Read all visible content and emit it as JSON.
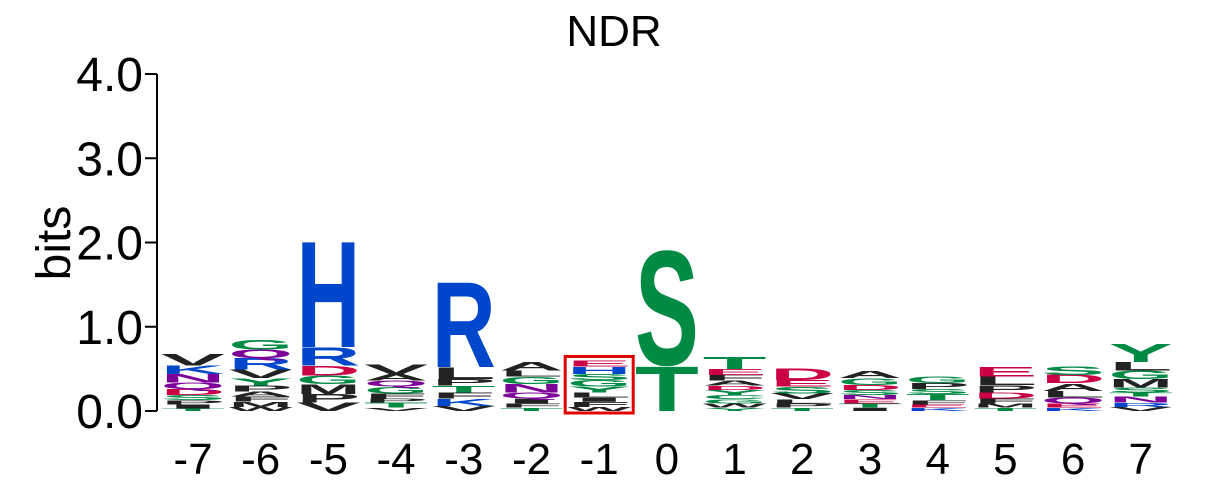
{
  "chart_data": {
    "type": "sequence-logo",
    "title": "NDR",
    "ylabel": "bits",
    "ylim": [
      0,
      4.0
    ],
    "yticks": [
      "0.0",
      "1.0",
      "2.0",
      "3.0",
      "4.0"
    ],
    "highlight_position": "-1",
    "colors": {
      "H": "#0047cc",
      "K": "#0047cc",
      "R": "#0047cc",
      "D": "#cc0044",
      "E": "#cc0044",
      "N": "#7d0099",
      "Q": "#7d0099",
      "S": "#008a44",
      "T": "#008a44",
      "G": "#008a44",
      "C": "#008a44",
      "Y": "#008a44",
      "A": "#222222",
      "V": "#222222",
      "L": "#222222",
      "I": "#222222",
      "P": "#222222",
      "W": "#222222",
      "F": "#222222",
      "M": "#222222",
      "highlight": "#e00000"
    },
    "positions": [
      {
        "label": "-7",
        "stack": [
          [
            "T",
            0.03
          ],
          [
            "I",
            0.05
          ],
          [
            "P",
            0.05
          ],
          [
            "S",
            0.06
          ],
          [
            "D",
            0.07
          ],
          [
            "Q",
            0.08
          ],
          [
            "N",
            0.1
          ],
          [
            "K",
            0.1
          ],
          [
            "V",
            0.14
          ]
        ]
      },
      {
        "label": "-6",
        "stack": [
          [
            "W",
            0.05
          ],
          [
            "M",
            0.06
          ],
          [
            "F",
            0.06
          ],
          [
            "A",
            0.06
          ],
          [
            "P",
            0.07
          ],
          [
            "Y",
            0.09
          ],
          [
            "V",
            0.1
          ],
          [
            "R",
            0.14
          ],
          [
            "Q",
            0.1
          ],
          [
            "G",
            0.12
          ]
        ]
      },
      {
        "label": "-5",
        "stack": [
          [
            "V",
            0.1
          ],
          [
            "P",
            0.1
          ],
          [
            "M",
            0.12
          ],
          [
            "G",
            0.1
          ],
          [
            "D",
            0.12
          ],
          [
            "R",
            0.22
          ],
          [
            "H",
            1.3
          ]
        ]
      },
      {
        "label": "-4",
        "stack": [
          [
            "V",
            0.04
          ],
          [
            "T",
            0.06
          ],
          [
            "P",
            0.05
          ],
          [
            "F",
            0.06
          ],
          [
            "G",
            0.08
          ],
          [
            "Q",
            0.07
          ],
          [
            "A",
            0.08
          ],
          [
            "V",
            0.12
          ]
        ]
      },
      {
        "label": "-3",
        "stack": [
          [
            "V",
            0.06
          ],
          [
            "K",
            0.09
          ],
          [
            "F",
            0.07
          ],
          [
            "T",
            0.08
          ],
          [
            "P",
            0.08
          ],
          [
            "L",
            0.14
          ],
          [
            "R",
            1.05
          ]
        ]
      },
      {
        "label": "-2",
        "stack": [
          [
            "T",
            0.04
          ],
          [
            "F",
            0.05
          ],
          [
            "I",
            0.06
          ],
          [
            "Q",
            0.07
          ],
          [
            "N",
            0.1
          ],
          [
            "G",
            0.09
          ],
          [
            "L",
            0.07
          ],
          [
            "A",
            0.1
          ]
        ]
      },
      {
        "label": "-1",
        "stack": [
          [
            "W",
            0.05
          ],
          [
            "F",
            0.06
          ],
          [
            "I",
            0.05
          ],
          [
            "L",
            0.06
          ],
          [
            "Y",
            0.07
          ],
          [
            "G",
            0.08
          ],
          [
            "S",
            0.07
          ],
          [
            "H",
            0.09
          ],
          [
            "E",
            0.07
          ]
        ]
      },
      {
        "label": "0",
        "stack": [
          [
            "T",
            0.55
          ],
          [
            "S",
            1.4
          ]
        ]
      },
      {
        "label": "1",
        "stack": [
          [
            "Y",
            0.04
          ],
          [
            "W",
            0.05
          ],
          [
            "G",
            0.05
          ],
          [
            "C",
            0.05
          ],
          [
            "Y",
            0.06
          ],
          [
            "D",
            0.05
          ],
          [
            "A",
            0.06
          ],
          [
            "F",
            0.07
          ],
          [
            "E",
            0.07
          ],
          [
            "T",
            0.15
          ]
        ]
      },
      {
        "label": "2",
        "stack": [
          [
            "T",
            0.04
          ],
          [
            "P",
            0.05
          ],
          [
            "L",
            0.05
          ],
          [
            "V",
            0.07
          ],
          [
            "S",
            0.08
          ],
          [
            "E",
            0.08
          ],
          [
            "D",
            0.14
          ]
        ]
      },
      {
        "label": "3",
        "stack": [
          [
            "I",
            0.04
          ],
          [
            "T",
            0.05
          ],
          [
            "E",
            0.05
          ],
          [
            "N",
            0.05
          ],
          [
            "S",
            0.06
          ],
          [
            "D",
            0.06
          ],
          [
            "G",
            0.08
          ],
          [
            "A",
            0.09
          ]
        ]
      },
      {
        "label": "4",
        "stack": [
          [
            "K",
            0.04
          ],
          [
            "E",
            0.04
          ],
          [
            "F",
            0.05
          ],
          [
            "T",
            0.07
          ],
          [
            "S",
            0.06
          ],
          [
            "P",
            0.07
          ],
          [
            "G",
            0.08
          ]
        ]
      },
      {
        "label": "5",
        "stack": [
          [
            "T",
            0.04
          ],
          [
            "M",
            0.05
          ],
          [
            "F",
            0.06
          ],
          [
            "D",
            0.07
          ],
          [
            "P",
            0.09
          ],
          [
            "L",
            0.1
          ],
          [
            "E",
            0.12
          ]
        ]
      },
      {
        "label": "6",
        "stack": [
          [
            "K",
            0.04
          ],
          [
            "E",
            0.05
          ],
          [
            "Q",
            0.07
          ],
          [
            "L",
            0.08
          ],
          [
            "A",
            0.09
          ],
          [
            "D",
            0.1
          ],
          [
            "S",
            0.1
          ]
        ]
      },
      {
        "label": "7",
        "stack": [
          [
            "V",
            0.05
          ],
          [
            "R",
            0.05
          ],
          [
            "N",
            0.07
          ],
          [
            "T",
            0.05
          ],
          [
            "S",
            0.06
          ],
          [
            "M",
            0.1
          ],
          [
            "G",
            0.1
          ],
          [
            "L",
            0.1
          ],
          [
            "Y",
            0.22
          ]
        ]
      }
    ]
  }
}
